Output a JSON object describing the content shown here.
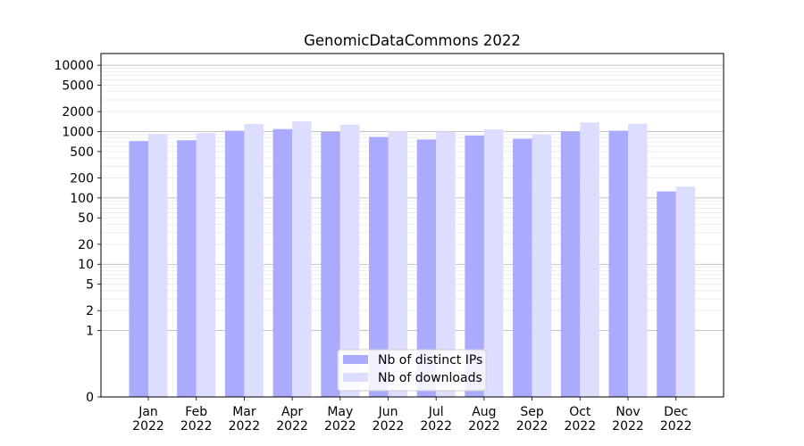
{
  "chart_data": {
    "type": "bar",
    "title": "GenomicDataCommons 2022",
    "xlabel": "",
    "ylabel": "",
    "yscale": "symlog",
    "categories": [
      "Jan\n2022",
      "Feb\n2022",
      "Mar\n2022",
      "Apr\n2022",
      "May\n2022",
      "Jun\n2022",
      "Jul\n2022",
      "Aug\n2022",
      "Sep\n2022",
      "Oct\n2022",
      "Nov\n2022",
      "Dec\n2022"
    ],
    "series": [
      {
        "name": "Nb of distinct IPs",
        "color": "#aaaaff",
        "values": [
          720,
          740,
          1030,
          1090,
          990,
          830,
          760,
          870,
          780,
          1000,
          1030,
          125
        ]
      },
      {
        "name": "Nb of downloads",
        "color": "#ddddff",
        "values": [
          920,
          950,
          1300,
          1420,
          1270,
          1010,
          990,
          1080,
          910,
          1370,
          1310,
          148
        ]
      }
    ],
    "yticks": [
      0,
      1,
      2,
      5,
      10,
      20,
      50,
      100,
      200,
      500,
      1000,
      2000,
      5000,
      10000
    ],
    "ytick_labels": [
      "0",
      "1",
      "2",
      "5",
      "10",
      "20",
      "50",
      "100",
      "200",
      "500",
      "1000",
      "2000",
      "5000",
      "10000"
    ],
    "ylim": [
      0,
      15000
    ],
    "grid": true,
    "legend_position": "lower-center"
  }
}
